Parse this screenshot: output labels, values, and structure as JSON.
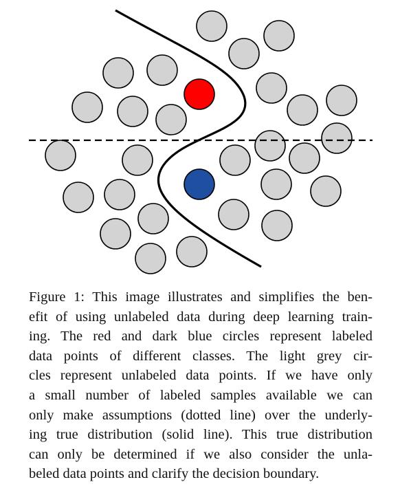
{
  "figure": {
    "colors": {
      "unlabeled_fill": "#d3d3d3",
      "outline": "#000000",
      "red": "#ff0000",
      "blue": "#1f4fa0"
    }
  },
  "caption": {
    "lines": [
      "Figure 1: This image illustrates and simplifies the ben-",
      "efit of using unlabeled data during deep learning train-",
      "ing.  The red and dark blue circles represent labeled",
      "data points of different classes.  The light grey cir-",
      "cles represent unlabeled data points.  If we have only",
      "a small number of labeled samples available we can",
      "only make assumptions (dotted line) over the underly-",
      "ing true distribution (solid line). This true distribution",
      "can only be determined if we also consider the unla-",
      "beled data points and clarify the decision boundary."
    ]
  }
}
